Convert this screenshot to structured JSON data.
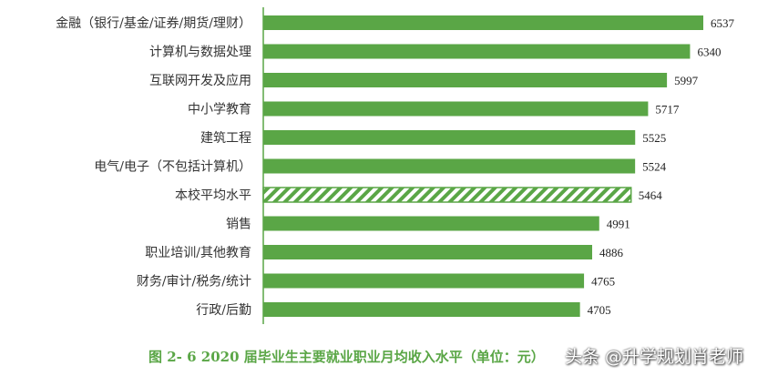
{
  "chart_data": {
    "type": "bar",
    "orientation": "horizontal",
    "title": "图 2- 6   2020 届毕业生主要就业职业月均收入水平（单位：元）",
    "categories": [
      "金融（银行/基金/证券/期货/理财）",
      "计算机与数据处理",
      "互联网开发及应用",
      "中小学教育",
      "建筑工程",
      "电气/电子（不包括计算机）",
      "本校平均水平",
      "销售",
      "职业培训/其他教育",
      "财务/审计/税务/统计",
      "行政/后勤"
    ],
    "values": [
      6537,
      6340,
      5997,
      5717,
      5525,
      5524,
      5464,
      4991,
      4886,
      4765,
      4705
    ],
    "highlight_category": "本校平均水平",
    "highlight_style": "hatched",
    "xlim": [
      0,
      6537
    ],
    "grid": false,
    "colors": {
      "bar": "#5aa646",
      "caption": "#5aa646"
    }
  },
  "watermark": "头条 @升学规划肖老师"
}
